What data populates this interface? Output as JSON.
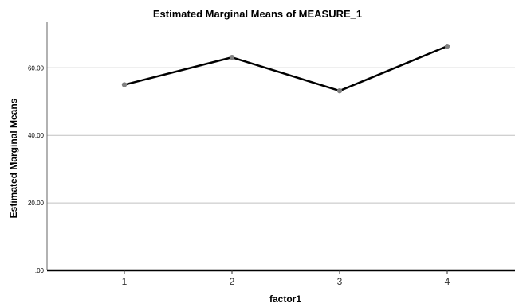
{
  "chart_data": {
    "type": "line",
    "title": "Estimated Marginal Means of MEASURE_1",
    "xlabel": "factor1",
    "ylabel": "Estimated Marginal Means",
    "categories": [
      "1",
      "2",
      "3",
      "4"
    ],
    "series": [
      {
        "values": [
          55.0,
          63.1,
          53.2,
          66.4
        ]
      }
    ],
    "ylim": [
      0,
      73.5
    ],
    "yticks": [
      0,
      20,
      40,
      60
    ],
    "ytick_labels": [
      ".00",
      "20.00",
      "40.00",
      "60.00"
    ],
    "grid": "horizontal",
    "legend": "none",
    "colors": {
      "line": "#000000",
      "marker": "#808080",
      "grid": "#c0c0c0",
      "axis": "#000000"
    }
  }
}
